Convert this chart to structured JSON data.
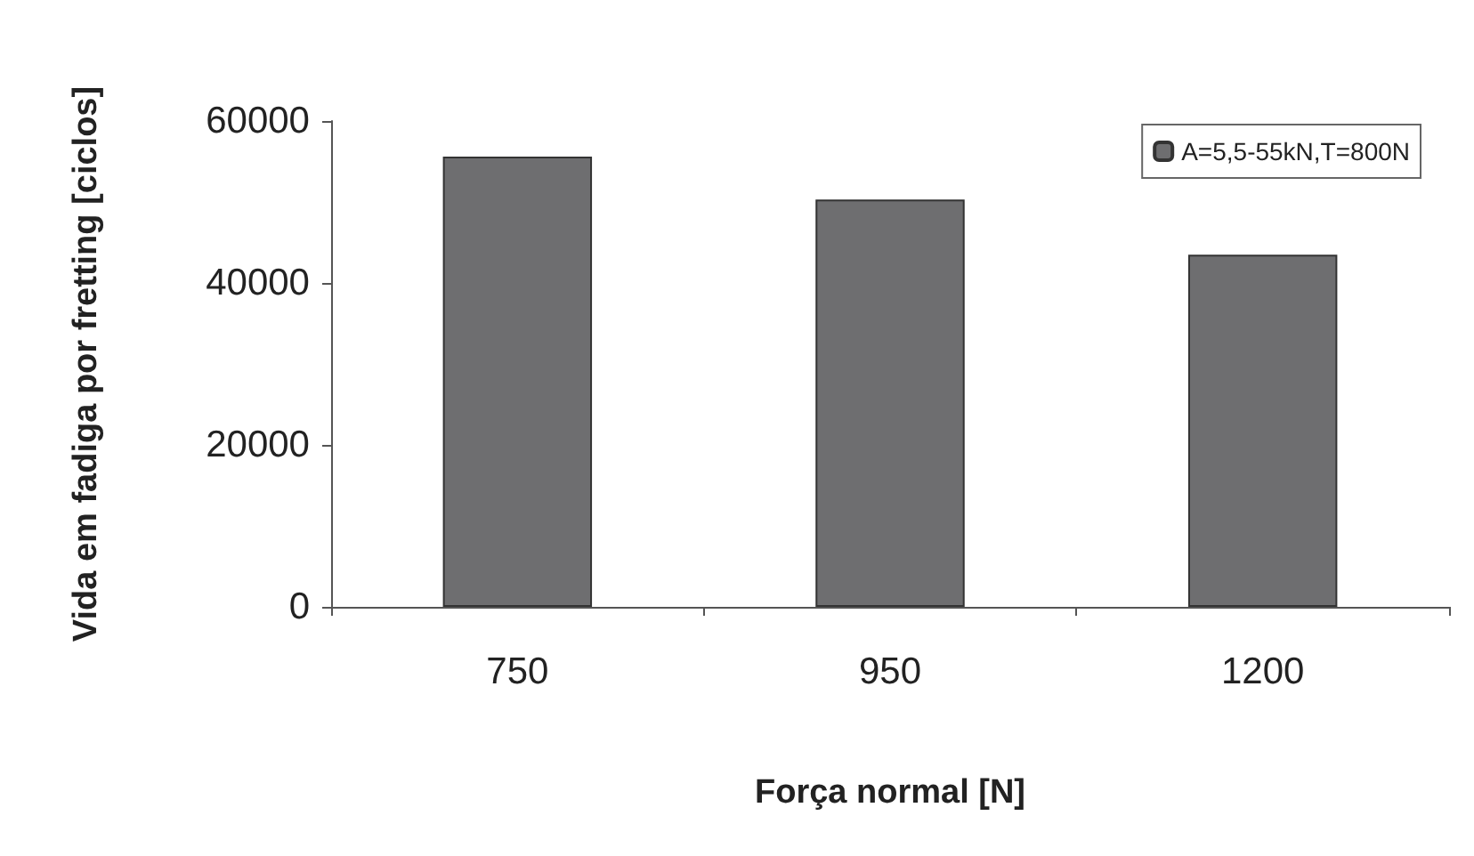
{
  "chart_data": {
    "type": "bar",
    "xlabel": "Força normal [N]",
    "ylabel": "Vida em fadiga por fretting [ciclos]",
    "categories": [
      "750",
      "950",
      "1200"
    ],
    "series": [
      {
        "name": "A=5,5-55kN,T=800N",
        "color": "#6e6e70",
        "values": [
          55600,
          50300,
          43500
        ]
      }
    ],
    "ylim": [
      0,
      60000
    ],
    "yticks": [
      0,
      20000,
      40000,
      60000
    ],
    "grid": false,
    "legend": "top right"
  }
}
